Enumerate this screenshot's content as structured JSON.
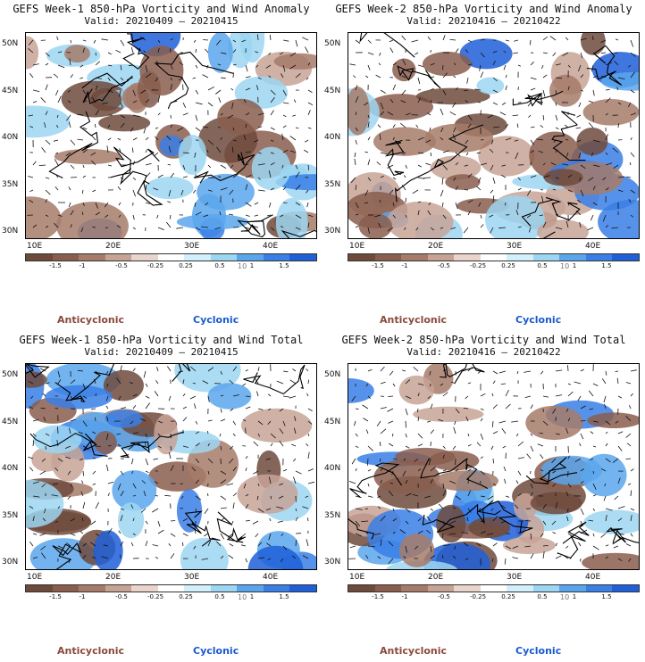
{
  "panels": [
    {
      "title": "GEFS Week-1 850-hPa Vorticity and Wind Anomaly",
      "valid": "Valid: 20210409 – 20210415",
      "seed": 3
    },
    {
      "title": "GEFS Week-2 850-hPa Vorticity and Wind Anomaly",
      "valid": "Valid: 20210416 – 20210422",
      "seed": 11
    },
    {
      "title": "GEFS Week-1 850-hPa Vorticity and Wind Total",
      "valid": "Valid: 20210409 – 20210415",
      "seed": 23
    },
    {
      "title": "GEFS Week-2 850-hPa Vorticity and Wind Total",
      "valid": "Valid: 20210416 – 20210422",
      "seed": 37
    }
  ],
  "lat_labels": [
    "50N",
    "45N",
    "40N",
    "35N",
    "30N"
  ],
  "lon_labels": [
    "10E",
    "20E",
    "30E",
    "40E"
  ],
  "colorbar_ticks": [
    "-1.5",
    "-1",
    "-0.5",
    "-0.25",
    "0.25",
    "0.5",
    "1",
    "1.5"
  ],
  "scale_label": "10",
  "legend": {
    "anticyclonic": "Anticyclonic",
    "cyclonic": "Cyclonic"
  },
  "colors": [
    "#6e4a3c",
    "#8a5e4e",
    "#a67b6a",
    "#c7a396",
    "#ead5cd",
    "#ffffff",
    "#d2f0fb",
    "#9cd6f2",
    "#5aa6ec",
    "#3a7fe6",
    "#1f5fd8"
  ]
}
